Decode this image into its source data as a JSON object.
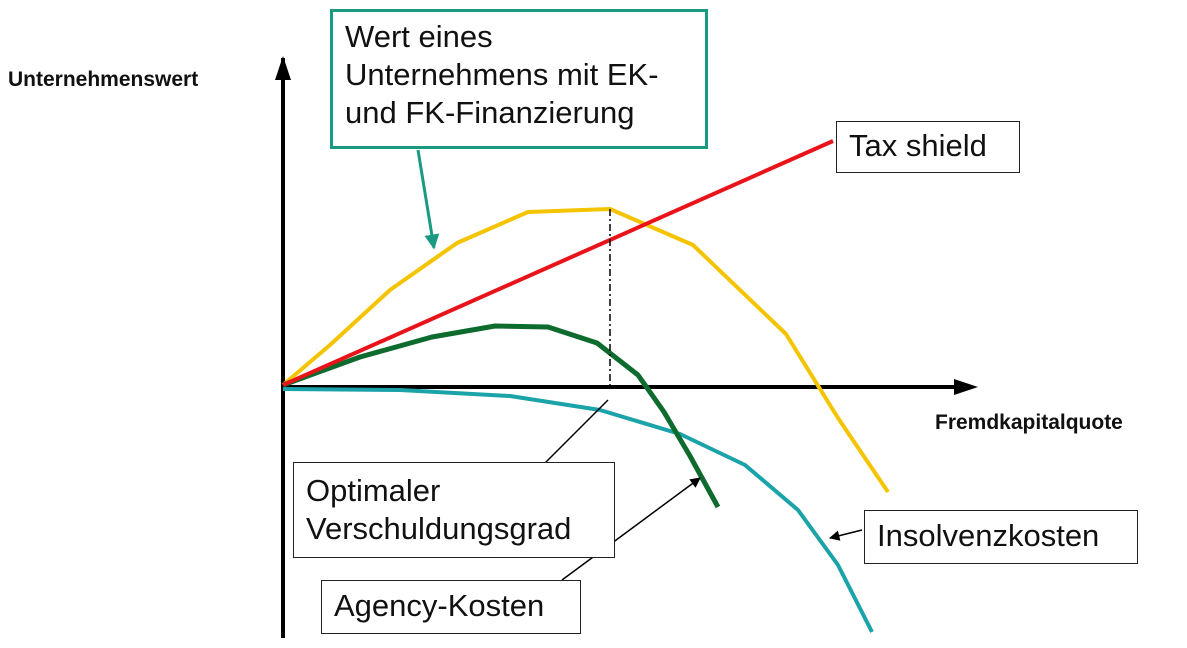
{
  "diagram": {
    "y_axis_label": "Unternehmenswert",
    "x_axis_label": "Fremdkapitalquote",
    "callouts": {
      "firm_value": {
        "lines": [
          "Wert eines",
          "Unternehmens mit EK-",
          "und FK-Finanzierung"
        ]
      },
      "tax_shield": {
        "text": "Tax shield"
      },
      "optimal_leverage": {
        "lines": [
          "Optimaler",
          "Verschuldungsgrad"
        ]
      },
      "insolvency_costs": {
        "text": "Insolvenzkosten"
      },
      "agency_costs": {
        "text": "Agency-Kosten"
      }
    },
    "curves": {
      "firm_value": {
        "name": "Wert eines Unternehmens mit EK- und FK-Finanzierung",
        "color": "#f5c400"
      },
      "tax_shield": {
        "name": "Tax shield",
        "color": "#e8141a"
      },
      "agency_costs": {
        "name": "Agency-Kosten",
        "color": "#0e6b2e"
      },
      "insolvency_costs": {
        "name": "Insolvenzkosten",
        "color": "#1aa3a8"
      }
    },
    "colors": {
      "axis": "#000000",
      "callout_accent": "#1a9a80"
    }
  }
}
